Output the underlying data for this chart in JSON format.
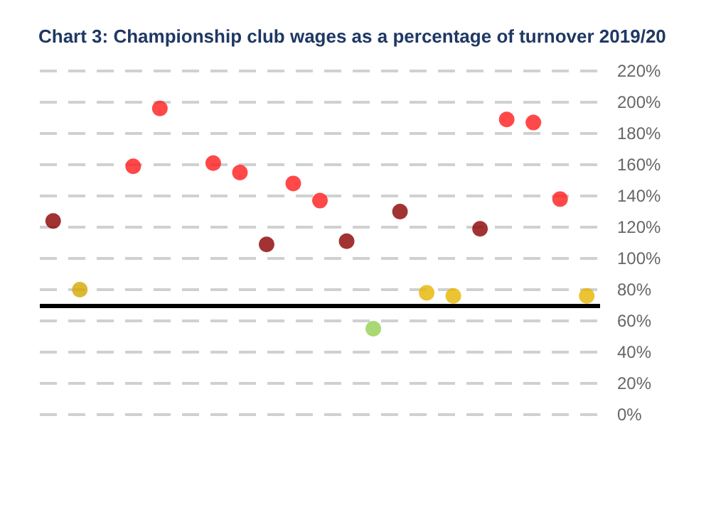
{
  "chart_data": {
    "type": "scatter",
    "title": "Chart 3: Championship club wages as a percentage of turnover 2019/20",
    "categories": [
      null,
      null,
      null,
      null,
      null,
      null,
      null,
      null,
      null,
      null,
      null,
      null,
      null,
      null,
      null,
      null,
      null,
      null,
      null,
      null,
      null
    ],
    "values": [
      124,
      80,
      null,
      159,
      196,
      null,
      161,
      155,
      109,
      148,
      137,
      111,
      55,
      130,
      78,
      76,
      119,
      189,
      187,
      138,
      76
    ],
    "colors": [
      "#8b0000",
      "#d4a800",
      null,
      "#ff1a1a",
      "#ff1a1a",
      null,
      "#ff1a1a",
      "#ff1a1a",
      "#8b0000",
      "#ff1a1a",
      "#ff1a1a",
      "#8b0000",
      "#92d050",
      "#8b0000",
      "#e6b400",
      "#e6b400",
      "#8b0000",
      "#ff1a1a",
      "#ff1a1a",
      "#ff1a1a",
      "#e6b400"
    ],
    "ylim": [
      0,
      220
    ],
    "yticks": [
      {
        "value": 0,
        "label": "0%"
      },
      {
        "value": 20,
        "label": "20%"
      },
      {
        "value": 40,
        "label": "40%"
      },
      {
        "value": 60,
        "label": "60%"
      },
      {
        "value": 80,
        "label": "80%"
      },
      {
        "value": 100,
        "label": "100%"
      },
      {
        "value": 120,
        "label": "120%"
      },
      {
        "value": 140,
        "label": "140%"
      },
      {
        "value": 160,
        "label": "160%"
      },
      {
        "value": 180,
        "label": "180%"
      },
      {
        "value": 200,
        "label": "200%"
      },
      {
        "value": 220,
        "label": "220%"
      }
    ],
    "grid": "y",
    "marker": "circle",
    "tick_labels": "y",
    "ref_lines": [
      {
        "axis": "y",
        "value": 70,
        "color": "#000000",
        "line_style": "solid"
      }
    ]
  }
}
